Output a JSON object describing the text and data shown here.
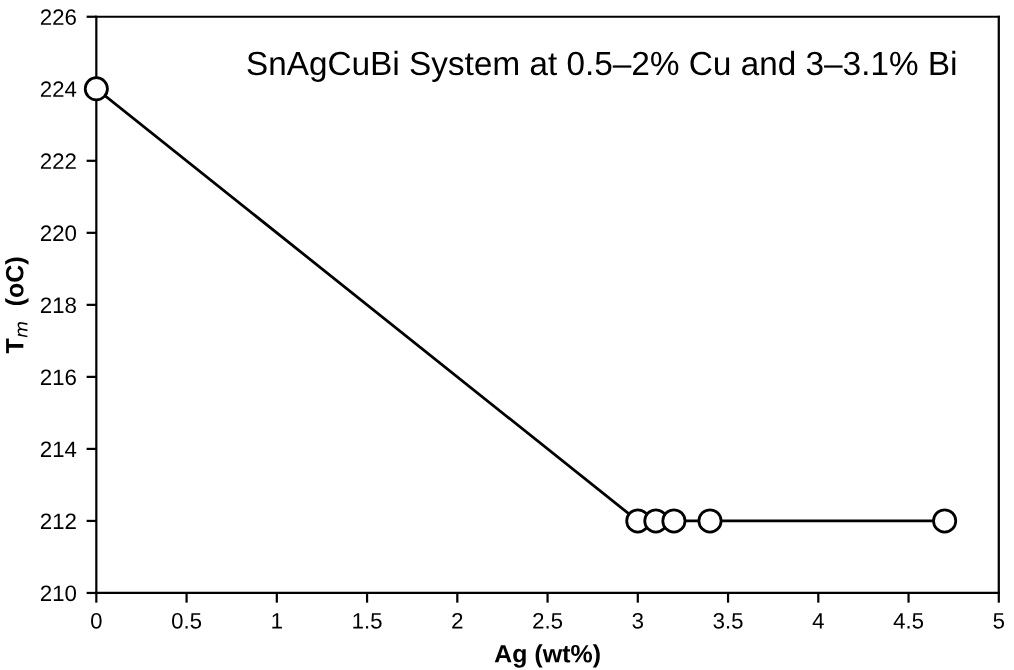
{
  "chart_data": {
    "type": "line",
    "title": "SnAgCuBi System at 0.5–2% Cu and 3–3.1% Bi",
    "xlabel": "Ag (wt%)",
    "ylabel": "T$_{m}$  (oC)",
    "x": [
      0,
      3.0,
      3.1,
      3.2,
      3.4,
      4.7
    ],
    "series": [
      {
        "color": "#000000",
        "values": [
          224,
          212,
          212,
          212,
          212,
          212
        ]
      }
    ],
    "xlim": [
      0,
      5
    ],
    "xticks": [
      0,
      0.5,
      1,
      1.5,
      2,
      2.5,
      3,
      3.5,
      4,
      4.5,
      5
    ],
    "ylim": [
      210,
      226
    ],
    "yticks": [
      210,
      212,
      214,
      216,
      218,
      220,
      222,
      224,
      226
    ],
    "marker": "circle",
    "line_style": "solid",
    "grid": false,
    "legend": false
  }
}
